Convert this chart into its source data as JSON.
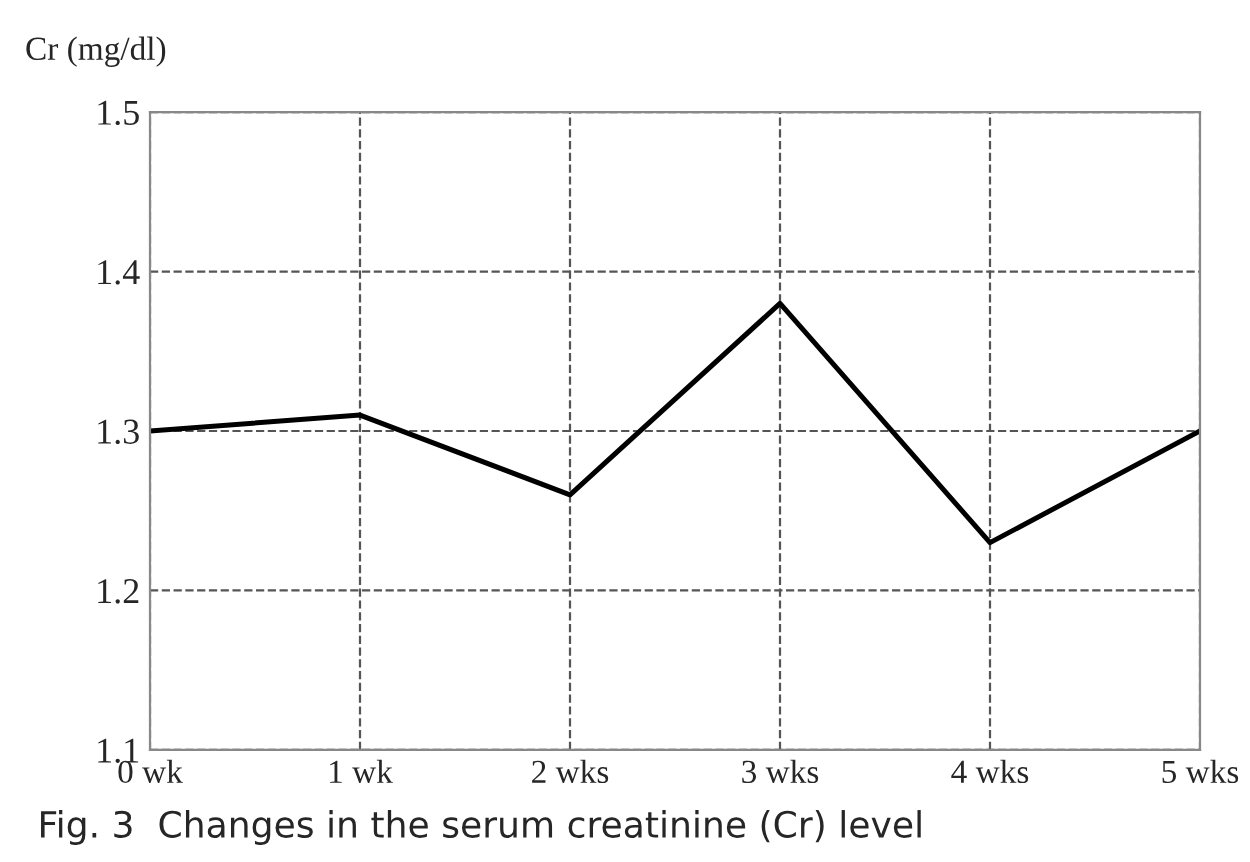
{
  "chart_data": {
    "type": "line",
    "ylabel": "Cr (mg/dl)",
    "categories": [
      "0 wk",
      "1 wk",
      "2 wks",
      "3 wks",
      "4 wks",
      "5 wks"
    ],
    "series": [
      {
        "color": "#000000",
        "values": [
          1.3,
          1.31,
          1.26,
          1.38,
          1.23,
          1.3
        ]
      }
    ],
    "ylim": [
      1.1,
      1.5
    ],
    "yticks": [
      1.1,
      1.2,
      1.3,
      1.4,
      1.5
    ],
    "grid": true,
    "marker": "none",
    "line_style": "solid",
    "annotations": [
      "Fig. 3  Changes in the serum creatinine (Cr) level"
    ]
  }
}
